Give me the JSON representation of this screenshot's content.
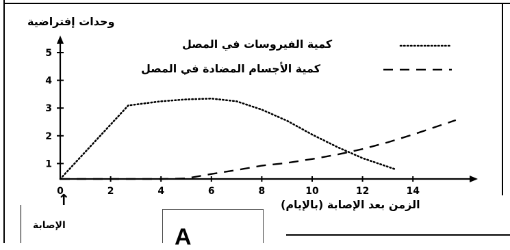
{
  "chart_data": {
    "type": "line",
    "ylabel": "وحدات إفتراضية",
    "xlabel": "الزمن بعد الإصابة (بالإيام)",
    "x_ticks": [
      "0",
      "2",
      "4",
      "6",
      "8",
      "10",
      "12",
      "14"
    ],
    "y_ticks": [
      "1",
      "2",
      "3",
      "4",
      "5"
    ],
    "xlim": [
      0,
      16
    ],
    "ylim": [
      0.3,
      5.6
    ],
    "grid": false,
    "legend_position": "top-right",
    "series": [
      {
        "name": "كمية الفيروسات في المصل",
        "style": "dotted",
        "x": [
          0,
          2.7,
          4,
          5,
          6,
          7,
          8,
          9,
          10,
          11,
          12,
          13.3
        ],
        "y": [
          0.6,
          3.25,
          3.4,
          3.47,
          3.5,
          3.4,
          3.1,
          2.7,
          2.2,
          1.75,
          1.35,
          0.95
        ]
      },
      {
        "name": "كمية الأجسام المضادة في المصل",
        "style": "dashed",
        "x": [
          0,
          2,
          4,
          5,
          6,
          7,
          8,
          9,
          10,
          11,
          12,
          13,
          14,
          15.7
        ],
        "y": [
          0.6,
          0.6,
          0.6,
          0.62,
          0.78,
          0.92,
          1.08,
          1.18,
          1.32,
          1.48,
          1.68,
          1.92,
          2.2,
          2.72
        ]
      }
    ]
  },
  "annotations": {
    "infection_label": "الإصابة",
    "infection_arrow": "↑",
    "box_label": "A"
  },
  "colors": {
    "line": "#000000",
    "background": "#ffffff"
  }
}
